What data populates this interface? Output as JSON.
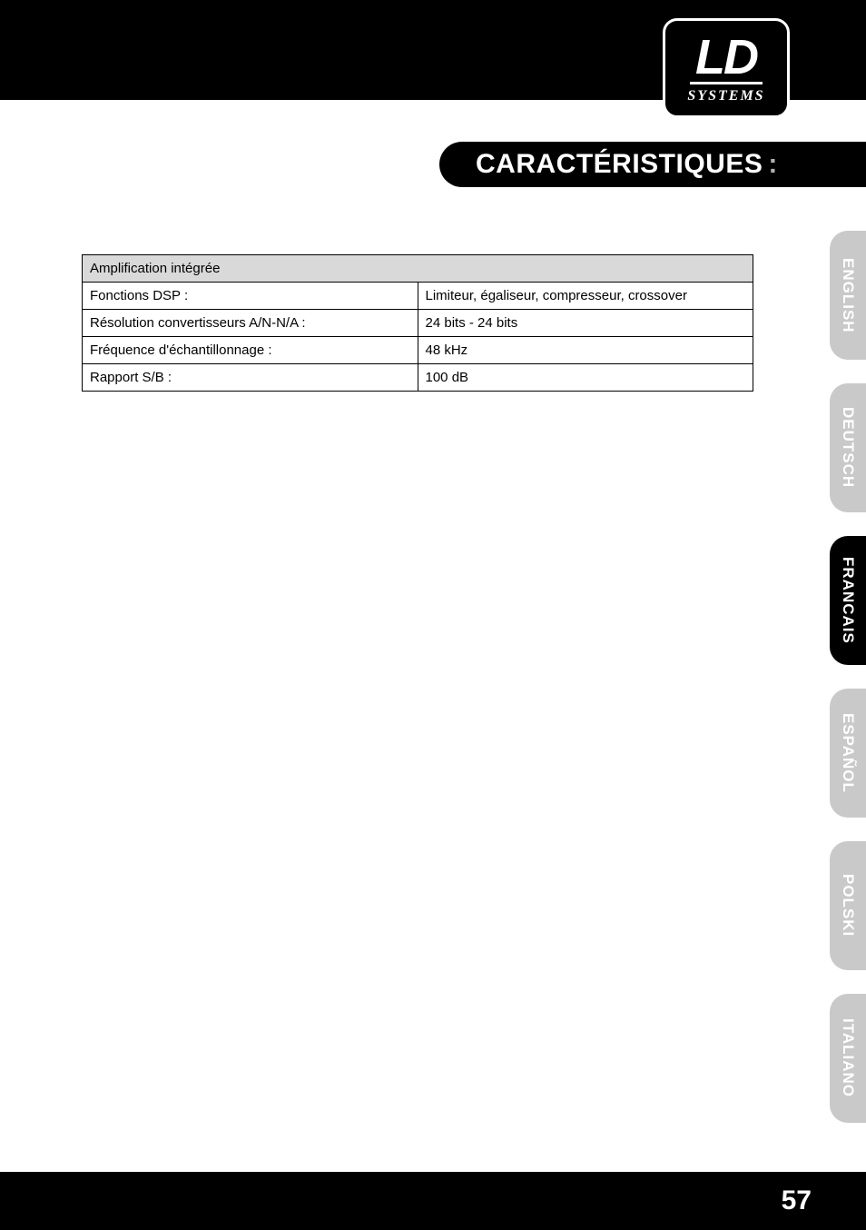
{
  "logo": {
    "brand_main": "LD",
    "brand_sub": "SYSTEMS"
  },
  "title": {
    "text": "CARACTÉRISTIQUES",
    "suffix": ":"
  },
  "table": {
    "header": "Amplification intégrée",
    "rows": [
      {
        "label": "Fonctions DSP :",
        "value": "Limiteur, égaliseur, compresseur, crossover"
      },
      {
        "label": "Résolution convertisseurs A/N-N/A :",
        "value": "24 bits - 24 bits"
      },
      {
        "label": "Fréquence d'échantillonnage :",
        "value": "48 kHz"
      },
      {
        "label": "Rapport S/B :",
        "value": "100 dB"
      }
    ],
    "header_bg": "#d9d9d9",
    "border_color": "#000000",
    "font_size": 15
  },
  "languages": {
    "items": [
      {
        "label": "ENGLISH",
        "active": false
      },
      {
        "label": "DEUTSCH",
        "active": false
      },
      {
        "label": "FRANCAIS",
        "active": true
      },
      {
        "label": "ESPAÑOL",
        "active": false
      },
      {
        "label": "POLSKI",
        "active": false
      },
      {
        "label": "ITALIANO",
        "active": false
      }
    ],
    "active_bg": "#000000",
    "inactive_bg": "#c9c9c9",
    "text_color": "#ffffff"
  },
  "page_number": "57",
  "colors": {
    "page_bg": "#ffffff",
    "band_bg": "#000000",
    "title_text": "#ffffff",
    "title_colon": "#b0b0b0"
  }
}
